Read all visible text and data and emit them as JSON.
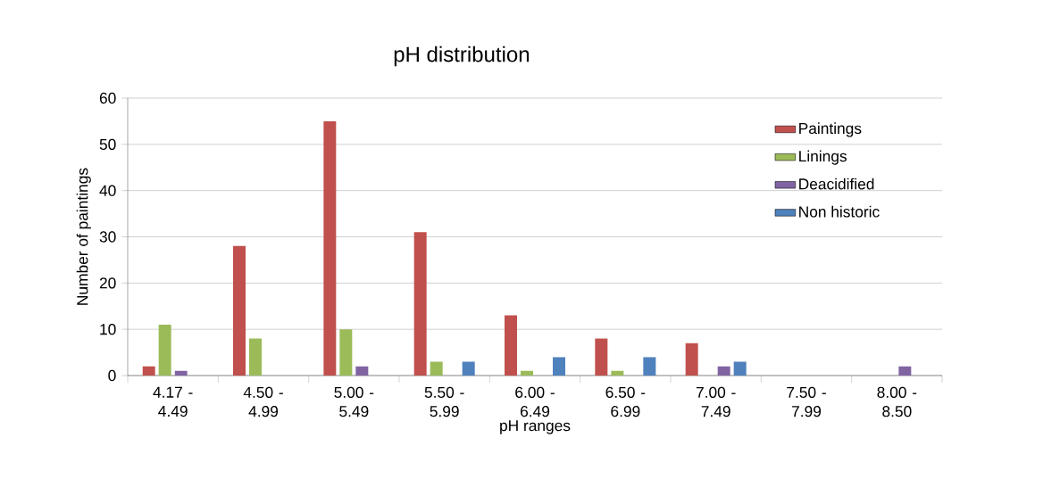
{
  "chart_data": {
    "type": "bar",
    "title": "pH distribution",
    "xlabel": "pH ranges",
    "ylabel": "Number of paintings",
    "categories": [
      "4.17 - 4.49",
      "4.50 - 4.99",
      "5.00 - 5.49",
      "5.50 - 5.99",
      "6.00 - 6.49",
      "6.50 - 6.99",
      "7.00 - 7.49",
      "7.50 - 7.99",
      "8.00 - 8.50"
    ],
    "series": [
      {
        "name": "Paintings",
        "color": "#c0504d",
        "values": [
          2,
          28,
          55,
          31,
          13,
          8,
          7,
          0,
          0
        ]
      },
      {
        "name": "Linings",
        "color": "#9bbb59",
        "values": [
          11,
          8,
          10,
          3,
          1,
          1,
          0,
          0,
          0
        ]
      },
      {
        "name": "Deacidified",
        "color": "#8064a2",
        "values": [
          1,
          0,
          2,
          0,
          0,
          0,
          2,
          0,
          2
        ]
      },
      {
        "name": "Non historic",
        "color": "#4f81bd",
        "values": [
          0,
          0,
          0,
          3,
          4,
          4,
          3,
          0,
          0
        ]
      }
    ],
    "ylim": [
      0,
      60
    ],
    "yticks": [
      0,
      10,
      20,
      30,
      40,
      50,
      60
    ],
    "grid": "y",
    "legend": "right"
  }
}
